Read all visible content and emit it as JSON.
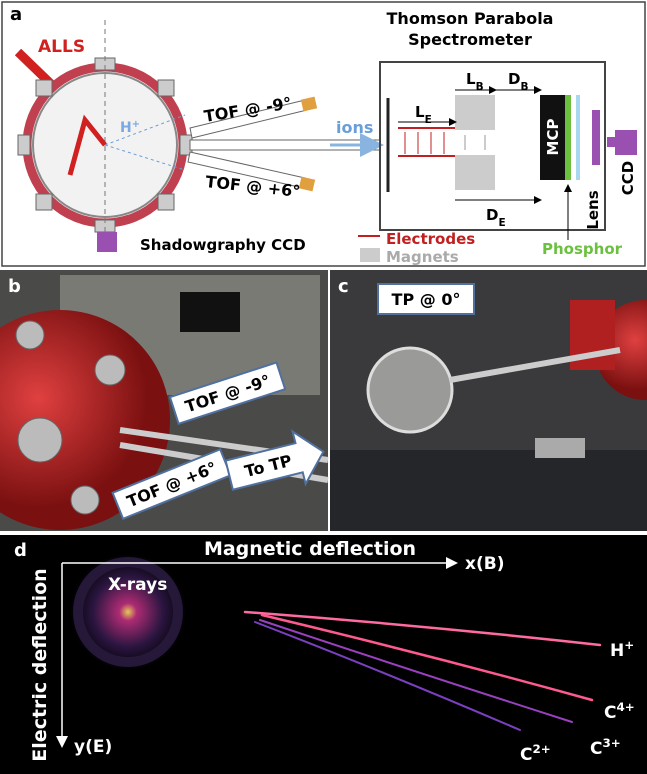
{
  "panel_a": {
    "label": "a",
    "laser": "ALLS",
    "ion_symbol": {
      "main": "H",
      "sup": "+"
    },
    "tof_top": "TOF @ -9°",
    "tof_bottom": "TOF @ +6°",
    "ions": "ions",
    "title_lines": [
      "Thomson Parabola",
      "Spectrometer"
    ],
    "dims": {
      "le": {
        "main": "L",
        "sub": "E"
      },
      "lb": {
        "main": "L",
        "sub": "B"
      },
      "db": {
        "main": "D",
        "sub": "B"
      },
      "de": {
        "main": "D",
        "sub": "E"
      }
    },
    "mcp": "MCP",
    "lens": "Lens",
    "ccd": "CCD",
    "shadow_ccd": "Shadowgraphy CCD",
    "legend": {
      "electrodes": "Electrodes",
      "magnets": "Magnets",
      "phosphor": "Phosphor"
    }
  },
  "panel_b": {
    "label": "b",
    "tof_top": "TOF @ -9°",
    "tof_bottom": "TOF @ +6°",
    "arrow": "To TP"
  },
  "panel_c": {
    "label": "c",
    "tp": "TP @ 0°"
  },
  "panel_d": {
    "label": "d",
    "x_axis": "Magnetic deflection",
    "x_symbol": "x(B)",
    "y_axis": "Electric deflection",
    "y_symbol": "y(E)",
    "xrays": "X-rays",
    "traces": [
      {
        "main": "H",
        "sup": "+"
      },
      {
        "main": "C",
        "sup": "4+"
      },
      {
        "main": "C",
        "sup": "3+"
      },
      {
        "main": "C",
        "sup": "2+"
      }
    ]
  }
}
